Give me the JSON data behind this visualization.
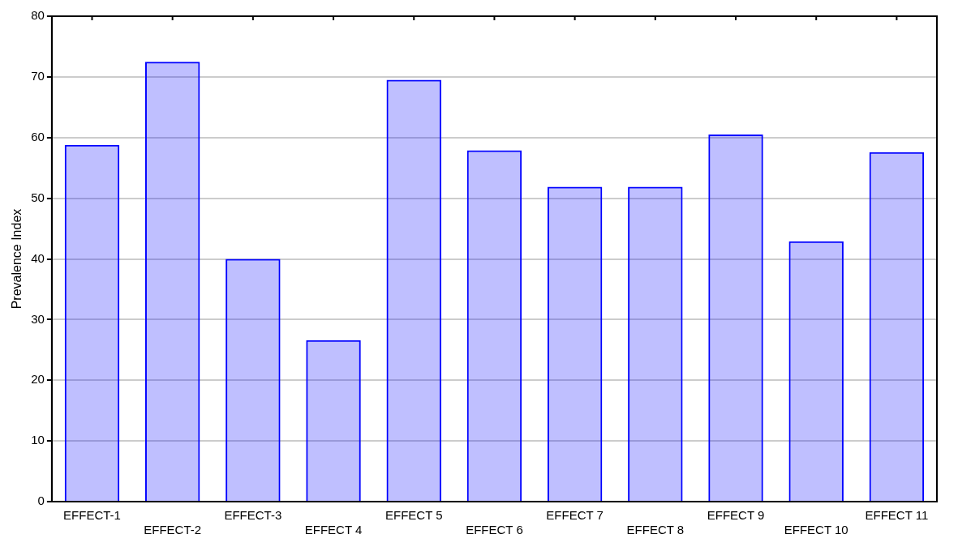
{
  "chart_data": {
    "type": "bar",
    "ylabel": "Prevalence Index",
    "categories": [
      "EFFECT-1",
      "EFFECT-2",
      "EFFECT-3",
      "EFFECT 4",
      "EFFECT 5",
      "EFFECT 6",
      "EFFECT 7",
      "EFFECT 8",
      "EFFECT 9",
      "EFFECT 10",
      "EFFECT 11"
    ],
    "values": [
      58.8,
      72.5,
      40,
      26.6,
      69.5,
      57.9,
      51.9,
      51.9,
      60.5,
      42.9,
      57.6
    ],
    "color": "#0000ff",
    "ylim": [
      0,
      80
    ],
    "yticks": [
      0,
      10,
      20,
      30,
      40,
      50,
      60,
      70,
      80
    ],
    "grid": "y"
  }
}
